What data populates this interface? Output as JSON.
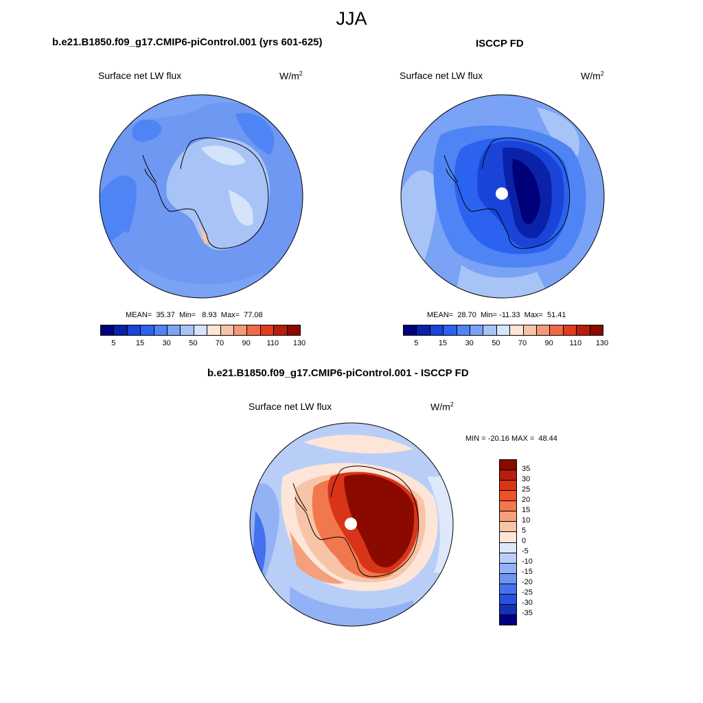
{
  "season": "JJA",
  "colors": {
    "abs": [
      "#00007a",
      "#0a22a8",
      "#1a44d8",
      "#2b62f0",
      "#4f84f5",
      "#7aa2f5",
      "#a8c4f7",
      "#d6e4fb",
      "#fde4d4",
      "#f8c4a8",
      "#f49a78",
      "#f06a48",
      "#e23c1e",
      "#b81c0c",
      "#8a0a00"
    ],
    "diff": [
      "#8a0a00",
      "#b81c0c",
      "#d83418",
      "#f05228",
      "#f0784c",
      "#f4a07c",
      "#f8c4a8",
      "#fde6d8",
      "#dde8fb",
      "#b8cef7",
      "#92b2f5",
      "#6c94f2",
      "#4472ee",
      "#2650e0",
      "#1530b8",
      "#000080"
    ]
  },
  "panels": [
    {
      "title": "b.e21.B1850.f09_g17.CMIP6-piControl.001 (yrs 601-625)",
      "variable": "Surface net LW flux",
      "unit": "W/m",
      "unit_exp": "2",
      "stats": "MEAN=  35.37  Min=   8.93  Max=  77.08",
      "ticks": [
        "5",
        "15",
        "30",
        "50",
        "70",
        "90",
        "110",
        "130"
      ]
    },
    {
      "title": "ISCCP FD",
      "variable": "Surface net LW flux",
      "unit": "W/m",
      "unit_exp": "2",
      "stats": "MEAN=  28.70  Min= -11.33  Max=  51.41",
      "ticks": [
        "5",
        "15",
        "30",
        "50",
        "70",
        "90",
        "110",
        "130"
      ]
    }
  ],
  "diff_panel": {
    "title": "b.e21.B1850.f09_g17.CMIP6-piControl.001 - ISCCP FD",
    "variable": "Surface net LW flux",
    "unit": "W/m",
    "unit_exp": "2",
    "stats": "MIN = -20.16 MAX =  48.44",
    "ticks": [
      "35",
      "30",
      "25",
      "20",
      "15",
      "10",
      "5",
      "0",
      "-5",
      "-10",
      "-15",
      "-20",
      "-25",
      "-30",
      "-35"
    ]
  }
}
